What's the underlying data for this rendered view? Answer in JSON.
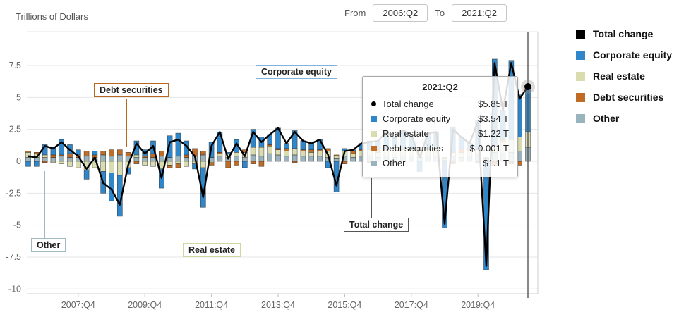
{
  "header": {
    "units_label": "Trillions of Dollars",
    "from_label": "From",
    "from_value": "2006:Q2",
    "to_label": "To",
    "to_value": "2021:Q2"
  },
  "colors": {
    "total_change": "#000000",
    "corporate_equity": "#2f87c9",
    "real_estate": "#d9dcae",
    "debt_securities": "#bf6c26",
    "other": "#99b4bd",
    "grid": "#e6e6e6",
    "axis_border": "#cfcfcf",
    "axis_text": "#666666",
    "crosshair": "#555555"
  },
  "callout_colors": {
    "corporate_equity": "#7db4e0",
    "debt_securities": "#b9671f",
    "real_estate": "#cfd6a0",
    "other": "#9fb9c4",
    "total_change": "#555555"
  },
  "callouts": {
    "debt_securities": "Debt securities",
    "corporate_equity": "Corporate equity",
    "other": "Other",
    "real_estate": "Real estate",
    "total_change": "Total change"
  },
  "legend": {
    "items": [
      {
        "label": "Total change",
        "color": "#000000"
      },
      {
        "label": "Corporate equity",
        "color": "#2f87c9"
      },
      {
        "label": "Real estate",
        "color": "#d9dcae"
      },
      {
        "label": "Debt securities",
        "color": "#bf6c26"
      },
      {
        "label": "Other",
        "color": "#99b4bd"
      }
    ]
  },
  "tooltip": {
    "title": "2021:Q2",
    "rows": [
      {
        "label": "Total change",
        "value": "$5.85 T"
      },
      {
        "label": "Corporate equity",
        "value": "$3.54 T"
      },
      {
        "label": "Real estate",
        "value": "$1.22 T"
      },
      {
        "label": "Debt securities",
        "value": "$-0.001 T"
      },
      {
        "label": "Other",
        "value": "$1.1 T"
      }
    ]
  },
  "chart_data": {
    "type": "bar",
    "subtype": "stacked-bars-with-total-line",
    "title": "",
    "ylabel": "Trillions of Dollars",
    "ylim": [
      -10.4,
      10.2
    ],
    "y_ticks": [
      7.5,
      5,
      2.5,
      0,
      -2.5,
      -5,
      -7.5,
      -10
    ],
    "x_start": "2006:Q2",
    "x_end": "2021:Q2",
    "n_points": 61,
    "x_tick_indices": [
      6,
      14,
      22,
      30,
      38,
      46,
      54
    ],
    "x_tick_labels": [
      "2007:Q4",
      "2009:Q4",
      "2011:Q4",
      "2013:Q4",
      "2015:Q4",
      "2017:Q4",
      "2019:Q4"
    ],
    "stack_order": [
      3,
      1,
      2,
      0
    ],
    "series": [
      {
        "name": "Corporate equity",
        "key": "corporate_equity",
        "color": "#2f87c9",
        "values": [
          -0.4,
          -0.4,
          0.8,
          0.6,
          1.2,
          0.7,
          0.4,
          -0.7,
          0.3,
          -1.7,
          -2.2,
          -3.2,
          -0.5,
          1.1,
          0.5,
          1.0,
          -1.5,
          1.7,
          1.8,
          1.1,
          -0.4,
          -3.1,
          1.2,
          1.6,
          0.1,
          1.0,
          -0.5,
          1.4,
          0.8,
          0.8,
          1.6,
          0.4,
          1.4,
          0.7,
          0.5,
          0.8,
          -0.5,
          -2.4,
          0.2,
          0.1,
          0.5,
          0.7,
          0.6,
          1.3,
          0.7,
          1.4,
          1.1,
          -0.8,
          1.2,
          1.3,
          -5.2,
          2.0,
          0.9,
          0.4,
          2.3,
          -8.5,
          6.8,
          2.3,
          6.2,
          3.3,
          3.54
        ]
      },
      {
        "name": "Real estate",
        "key": "real_estate",
        "color": "#d9dcae",
        "values": [
          0.4,
          0.3,
          0.2,
          -0.1,
          -0.2,
          -0.4,
          -0.5,
          -0.7,
          -0.5,
          -0.8,
          -0.9,
          -1.1,
          -0.5,
          0.2,
          -0.3,
          -0.4,
          -0.6,
          -0.3,
          -0.2,
          -0.4,
          -0.2,
          -0.5,
          -0.1,
          0.2,
          0.3,
          0.3,
          0.4,
          0.6,
          0.7,
          0.6,
          0.4,
          0.4,
          0.5,
          0.4,
          0.3,
          0.4,
          0.5,
          0.2,
          0.4,
          0.3,
          0.4,
          0.5,
          0.4,
          0.5,
          0.6,
          0.5,
          0.5,
          0.5,
          0.5,
          0.4,
          0.1,
          0.3,
          0.4,
          0.4,
          0.4,
          0.1,
          0.5,
          0.9,
          1.0,
          1.1,
          1.22
        ]
      },
      {
        "name": "Debt securities",
        "key": "debt_securities",
        "color": "#bf6c26",
        "values": [
          0.1,
          0.1,
          -0.1,
          0.2,
          0.1,
          0.3,
          0.2,
          0.4,
          0.2,
          0.3,
          0.5,
          0.4,
          0.3,
          -0.2,
          0.1,
          0.3,
          0.4,
          -0.2,
          -0.3,
          0.2,
          0.6,
          0.3,
          -0.2,
          0.1,
          -0.5,
          -0.3,
          0.2,
          -0.2,
          -0.4,
          0.1,
          0.1,
          0.2,
          -0.1,
          0.1,
          0.2,
          0.1,
          0.2,
          0.1,
          -0.2,
          0.2,
          0.1,
          -0.1,
          0.3,
          0.1,
          0.2,
          0.1,
          0.1,
          0.3,
          0.1,
          0.2,
          0.1,
          -0.2,
          0.3,
          0.2,
          -0.1,
          0.1,
          -0.3,
          0.2,
          -0.2,
          -0.3,
          -0.001
        ]
      },
      {
        "name": "Other",
        "key": "other",
        "color": "#99b4bd",
        "values": [
          0.3,
          0.3,
          0.3,
          0.3,
          0.4,
          0.3,
          0.3,
          0.4,
          0.3,
          0.5,
          0.4,
          0.5,
          0.4,
          0.3,
          0.3,
          0.3,
          0.4,
          0.3,
          0.4,
          0.3,
          0.4,
          0.5,
          0.3,
          0.4,
          0.3,
          0.4,
          0.3,
          0.5,
          0.4,
          0.6,
          0.5,
          0.4,
          0.5,
          0.4,
          0.4,
          0.4,
          0.3,
          0.2,
          0.4,
          0.3,
          0.4,
          0.4,
          0.3,
          0.4,
          0.3,
          0.4,
          0.4,
          0.3,
          0.4,
          0.4,
          0.1,
          0.4,
          0.3,
          0.4,
          0.5,
          0.1,
          0.7,
          0.6,
          0.7,
          0.8,
          1.1
        ]
      }
    ],
    "total_series": {
      "name": "Total change",
      "color": "#000000",
      "values": [
        0.4,
        0.3,
        1.2,
        1.0,
        1.5,
        0.9,
        0.4,
        -0.6,
        0.3,
        -1.7,
        -2.2,
        -3.4,
        -0.3,
        1.4,
        0.6,
        1.2,
        -1.3,
        1.5,
        1.7,
        1.2,
        0.4,
        -2.8,
        1.2,
        2.3,
        0.2,
        1.4,
        0.4,
        2.3,
        1.5,
        2.1,
        2.6,
        1.4,
        2.3,
        1.6,
        1.4,
        1.7,
        0.5,
        -1.9,
        0.8,
        0.9,
        1.4,
        1.5,
        1.6,
        2.3,
        1.8,
        2.4,
        2.1,
        0.3,
        2.2,
        2.3,
        -4.9,
        2.5,
        1.9,
        1.4,
        3.1,
        -8.2,
        7.7,
        4.0,
        7.7,
        4.9,
        5.85
      ]
    },
    "active_point": {
      "index": 60,
      "label": "2021:Q2",
      "total": 5.85
    }
  }
}
